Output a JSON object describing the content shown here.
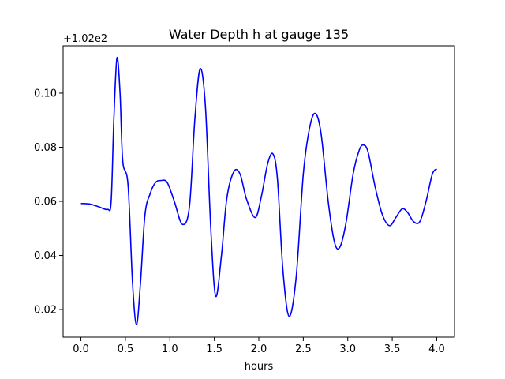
{
  "chart_data": {
    "type": "line",
    "title": "Water Depth h at gauge 135",
    "xlabel": "hours",
    "ylabel": "",
    "y_offset_label": "+1.02e2",
    "y_offset": 102,
    "xlim": [
      -0.2,
      4.2
    ],
    "ylim": [
      0.0098,
      0.1175
    ],
    "grid": false,
    "line_color": "#0000ff",
    "x_ticks": [
      {
        "value": 0.0,
        "label": "0.0"
      },
      {
        "value": 0.5,
        "label": "0.5"
      },
      {
        "value": 1.0,
        "label": "1.0"
      },
      {
        "value": 1.5,
        "label": "1.5"
      },
      {
        "value": 2.0,
        "label": "2.0"
      },
      {
        "value": 2.5,
        "label": "2.5"
      },
      {
        "value": 3.0,
        "label": "3.0"
      },
      {
        "value": 3.5,
        "label": "3.5"
      },
      {
        "value": 4.0,
        "label": "4.0"
      }
    ],
    "y_ticks": [
      {
        "value": 0.02,
        "label": "0.02"
      },
      {
        "value": 0.04,
        "label": "0.04"
      },
      {
        "value": 0.06,
        "label": "0.06"
      },
      {
        "value": 0.08,
        "label": "0.08"
      },
      {
        "value": 0.1,
        "label": "0.10"
      }
    ],
    "series": [
      {
        "points": [
          [
            0.0,
            0.0592
          ],
          [
            0.1,
            0.059
          ],
          [
            0.2,
            0.058
          ],
          [
            0.3,
            0.057
          ],
          [
            0.34,
            0.06
          ],
          [
            0.37,
            0.09
          ],
          [
            0.405,
            0.113
          ],
          [
            0.44,
            0.1
          ],
          [
            0.47,
            0.075
          ],
          [
            0.53,
            0.066
          ],
          [
            0.58,
            0.03
          ],
          [
            0.625,
            0.0145
          ],
          [
            0.67,
            0.03
          ],
          [
            0.72,
            0.055
          ],
          [
            0.78,
            0.063
          ],
          [
            0.84,
            0.067
          ],
          [
            0.9,
            0.0677
          ],
          [
            0.97,
            0.067
          ],
          [
            1.05,
            0.06
          ],
          [
            1.14,
            0.0515
          ],
          [
            1.22,
            0.058
          ],
          [
            1.28,
            0.09
          ],
          [
            1.34,
            0.109
          ],
          [
            1.4,
            0.095
          ],
          [
            1.46,
            0.05
          ],
          [
            1.515,
            0.025
          ],
          [
            1.58,
            0.04
          ],
          [
            1.64,
            0.061
          ],
          [
            1.72,
            0.071
          ],
          [
            1.79,
            0.07
          ],
          [
            1.86,
            0.061
          ],
          [
            1.96,
            0.054
          ],
          [
            2.03,
            0.062
          ],
          [
            2.1,
            0.074
          ],
          [
            2.16,
            0.0775
          ],
          [
            2.21,
            0.068
          ],
          [
            2.27,
            0.035
          ],
          [
            2.34,
            0.0175
          ],
          [
            2.42,
            0.032
          ],
          [
            2.5,
            0.07
          ],
          [
            2.57,
            0.087
          ],
          [
            2.635,
            0.0925
          ],
          [
            2.7,
            0.085
          ],
          [
            2.78,
            0.06
          ],
          [
            2.85,
            0.045
          ],
          [
            2.91,
            0.043
          ],
          [
            2.98,
            0.052
          ],
          [
            3.06,
            0.07
          ],
          [
            3.13,
            0.079
          ],
          [
            3.18,
            0.0808
          ],
          [
            3.23,
            0.078
          ],
          [
            3.31,
            0.065
          ],
          [
            3.39,
            0.055
          ],
          [
            3.47,
            0.051
          ],
          [
            3.54,
            0.054
          ],
          [
            3.61,
            0.0572
          ],
          [
            3.67,
            0.056
          ],
          [
            3.74,
            0.0525
          ],
          [
            3.81,
            0.0525
          ],
          [
            3.88,
            0.06
          ],
          [
            3.95,
            0.07
          ],
          [
            4.0,
            0.072
          ]
        ]
      }
    ]
  }
}
